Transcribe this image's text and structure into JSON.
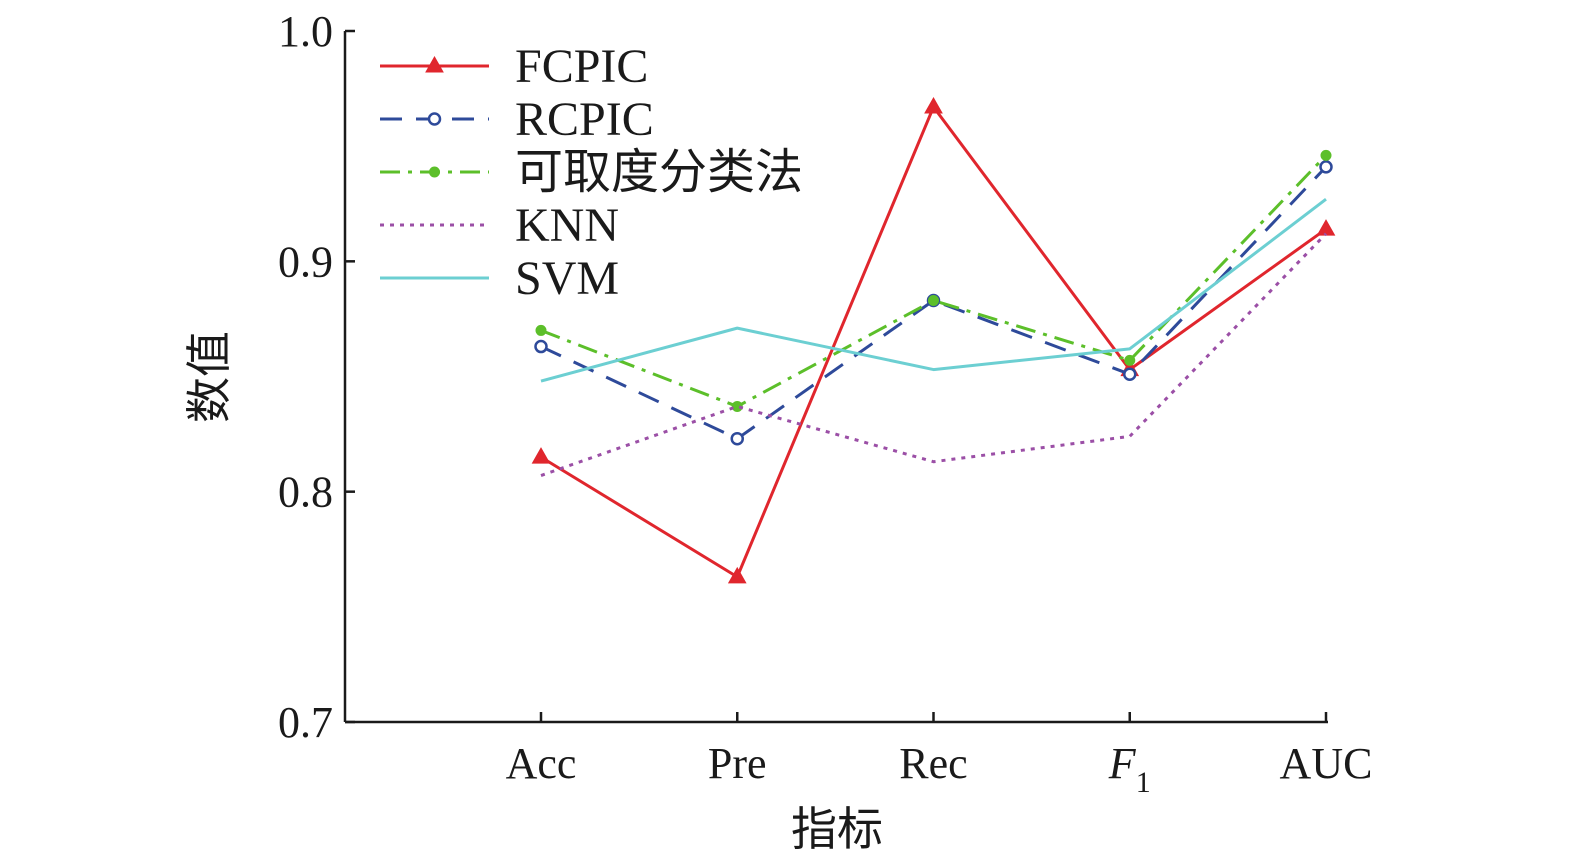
{
  "chart_data": {
    "type": "line",
    "categories": [
      "Acc",
      "Pre",
      "Rec",
      "F1",
      "AUC"
    ],
    "category_display": [
      {
        "text": "Acc",
        "italic": false,
        "sub": ""
      },
      {
        "text": "Pre",
        "italic": false,
        "sub": ""
      },
      {
        "text": "Rec",
        "italic": false,
        "sub": ""
      },
      {
        "text": "F",
        "italic": true,
        "sub": "1"
      },
      {
        "text": "AUC",
        "italic": false,
        "sub": ""
      }
    ],
    "xlabel": "指标",
    "ylabel": "数值",
    "ylim": [
      0.7,
      1.0
    ],
    "yticks": [
      "0.7",
      "0.8",
      "0.9",
      "1.0"
    ],
    "grid": false,
    "legend_position": "top-left",
    "series": [
      {
        "name": "FCPIC",
        "values": [
          0.815,
          0.763,
          0.967,
          0.853,
          0.914
        ],
        "color": "#e0262d",
        "dash": "",
        "marker": "triangle"
      },
      {
        "name": "RCPIC",
        "values": [
          0.863,
          0.823,
          0.883,
          0.851,
          0.941
        ],
        "color": "#2e4a9a",
        "dash": "22,14",
        "marker": "circle-open"
      },
      {
        "name": "可取度分类法",
        "values": [
          0.87,
          0.837,
          0.883,
          0.857,
          0.946
        ],
        "color": "#5cbf2a",
        "dash": "20,8,4,8",
        "marker": "circle-filled"
      },
      {
        "name": "KNN",
        "values": [
          0.807,
          0.837,
          0.813,
          0.824,
          0.912
        ],
        "color": "#9b4fa6",
        "dash": "4,6",
        "marker": "none"
      },
      {
        "name": "SVM",
        "values": [
          0.848,
          0.871,
          0.853,
          0.862,
          0.927
        ],
        "color": "#6ccfd2",
        "dash": "",
        "marker": "none"
      }
    ]
  }
}
